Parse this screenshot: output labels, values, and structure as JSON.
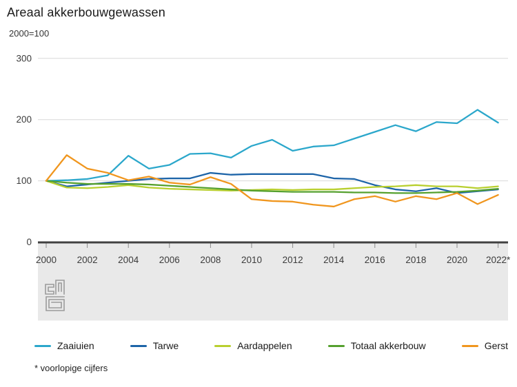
{
  "header": {
    "title": "Areaal akkerbouwgewassen",
    "subtitle": "2000=100"
  },
  "footnote": "* voorlopige cijfers",
  "chart_data": {
    "type": "line",
    "title": "Areaal akkerbouwgewassen",
    "index_note": "2000=100",
    "x": [
      2000,
      2001,
      2002,
      2003,
      2004,
      2005,
      2006,
      2007,
      2008,
      2009,
      2010,
      2011,
      2012,
      2013,
      2014,
      2015,
      2016,
      2017,
      2018,
      2019,
      2020,
      2021,
      2022
    ],
    "xtick_labels": [
      "2000",
      "2002",
      "2004",
      "2006",
      "2008",
      "2010",
      "2012",
      "2014",
      "2016",
      "2018",
      "2020",
      "2022*"
    ],
    "yticks": [
      0,
      100,
      200,
      300
    ],
    "ytick_labels": [
      "0",
      "100",
      "200",
      "300"
    ],
    "ylim": [
      0,
      300
    ],
    "grid": "horizontal",
    "legend_position": "bottom",
    "series": [
      {
        "name": "Zaaiuien",
        "color": "#2ba7cb",
        "values": [
          100,
          101,
          103,
          109,
          141,
          120,
          126,
          144,
          145,
          138,
          157,
          167,
          149,
          156,
          158,
          169,
          180,
          191,
          181,
          196,
          194,
          216,
          195
        ]
      },
      {
        "name": "Tarwe",
        "color": "#1d64a8",
        "values": [
          100,
          91,
          94,
          97,
          100,
          103,
          104,
          104,
          113,
          110,
          111,
          111,
          111,
          111,
          104,
          103,
          93,
          86,
          83,
          88,
          80,
          83,
          86
        ]
      },
      {
        "name": "Aardappelen",
        "color": "#b8cf2e",
        "values": [
          100,
          89,
          88,
          90,
          93,
          89,
          87,
          86,
          85,
          84,
          85,
          86,
          85,
          86,
          86,
          88,
          90,
          91,
          93,
          91,
          91,
          88,
          91
        ]
      },
      {
        "name": "Totaal akkerbouw",
        "color": "#55a02e",
        "values": [
          100,
          97,
          95,
          95,
          95,
          94,
          92,
          90,
          88,
          86,
          84,
          83,
          82,
          82,
          82,
          81,
          81,
          80,
          80,
          81,
          82,
          84,
          87
        ]
      },
      {
        "name": "Gerst",
        "color": "#f0961e",
        "values": [
          100,
          142,
          120,
          113,
          101,
          107,
          97,
          94,
          106,
          95,
          70,
          67,
          66,
          61,
          58,
          70,
          75,
          66,
          75,
          70,
          80,
          62,
          77
        ]
      }
    ]
  }
}
